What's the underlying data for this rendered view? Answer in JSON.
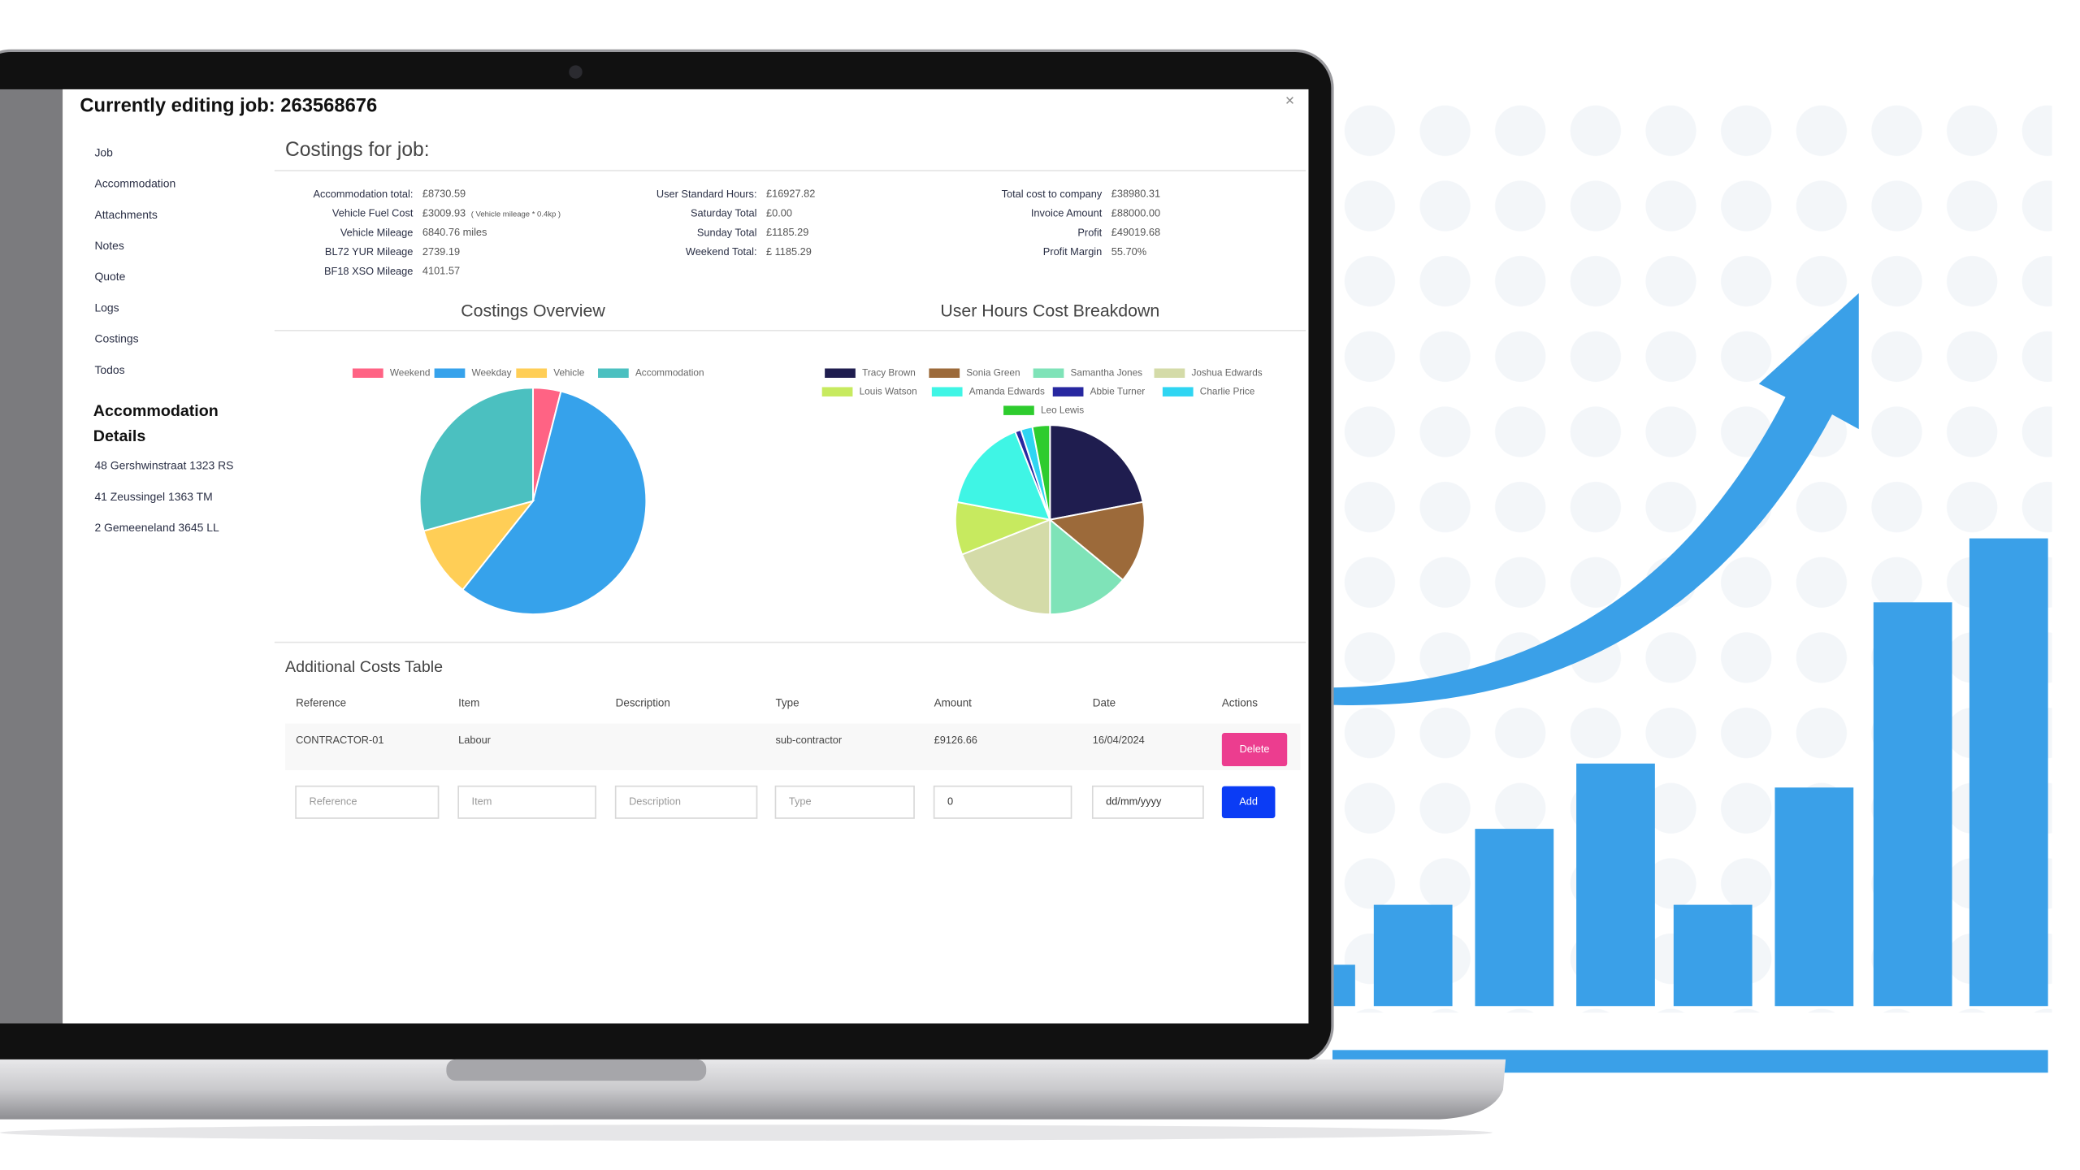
{
  "modal": {
    "title": "Currently editing job: 263568676",
    "close": "×"
  },
  "nav": [
    "Job",
    "Accommodation",
    "Attachments",
    "Notes",
    "Quote",
    "Logs",
    "Costings",
    "Todos"
  ],
  "accommodation": {
    "title_line1": "Accommodation",
    "title_line2": "Details",
    "addresses": [
      "48 Gershwinstraat 1323 RS",
      "41 Zeussingel 1363 TM",
      "2 Gemeeneland 3645 LL"
    ]
  },
  "costings": {
    "title": "Costings for job:",
    "columns": [
      [
        {
          "label": "Accommodation total:",
          "value": "£8730.59"
        },
        {
          "label": "Vehicle Fuel Cost",
          "value": "£3009.93",
          "note": "( Vehicle mileage * 0.4kp )"
        },
        {
          "label": "Vehicle Mileage",
          "value": "6840.76 miles"
        },
        {
          "label": "BL72 YUR Mileage",
          "value": "2739.19"
        },
        {
          "label": "BF18 XSO Mileage",
          "value": "4101.57"
        }
      ],
      [
        {
          "label": "User Standard Hours:",
          "value": "£16927.82"
        },
        {
          "label": "Saturday Total",
          "value": "£0.00"
        },
        {
          "label": "Sunday Total",
          "value": "£1185.29"
        },
        {
          "label": "Weekend Total:",
          "value": "£ 1185.29"
        }
      ],
      [
        {
          "label": "Total cost to company",
          "value": "£38980.31"
        },
        {
          "label": "Invoice Amount",
          "value": "£88000.00"
        },
        {
          "label": "Profit",
          "value": "£49019.68"
        },
        {
          "label": "Profit Margin",
          "value": "55.70%"
        }
      ]
    ]
  },
  "chart_data": [
    {
      "type": "pie",
      "title": "Costings Overview",
      "categories": [
        "Weekend",
        "Weekday",
        "Vehicle",
        "Accommodation"
      ],
      "values": [
        1185.29,
        16927.82,
        3009.93,
        8730.59
      ],
      "colors": [
        "#ff6384",
        "#36a2eb",
        "#ffce56",
        "#4bc0c0"
      ],
      "legend": "top"
    },
    {
      "type": "pie",
      "title": "User Hours Cost Breakdown",
      "categories": [
        "Tracy Brown",
        "Sonia Green",
        "Samantha Jones",
        "Joshua Edwards",
        "Louis Watson",
        "Amanda Edwards",
        "Abbie Turner",
        "Charlie Price",
        "Leo Lewis"
      ],
      "values": [
        22,
        14,
        14,
        19,
        9,
        16,
        1,
        2,
        3
      ],
      "colors": [
        "#1f1d4f",
        "#9c6a3a",
        "#7fe3b8",
        "#d4dba8",
        "#c7ea5f",
        "#3ff5e5",
        "#2727a0",
        "#2fd5f2",
        "#2ecc2e"
      ],
      "legend": "top"
    }
  ],
  "table": {
    "title": "Additional Costs Table",
    "headers": [
      "Reference",
      "Item",
      "Description",
      "Type",
      "Amount",
      "Date",
      "Actions"
    ],
    "rows": [
      [
        "CONTRACTOR-01",
        "Labour",
        "",
        "sub-contractor",
        "£9126.66",
        "16/04/2024"
      ]
    ],
    "delete": "Delete",
    "inputs": [
      "Reference",
      "Item",
      "Description",
      "Type",
      0,
      "dd/mm/yyyy"
    ],
    "add": "Add"
  }
}
